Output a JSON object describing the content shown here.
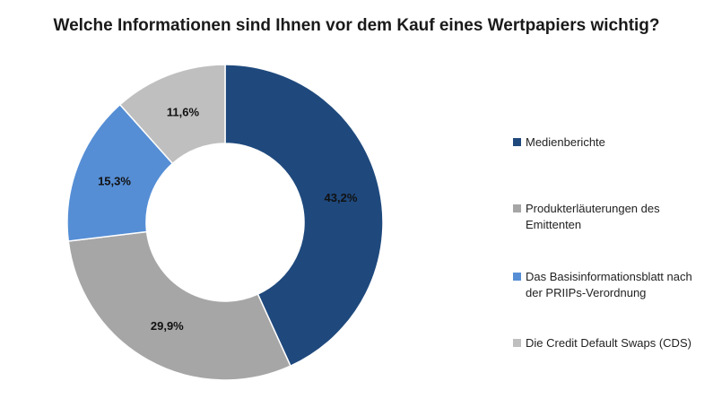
{
  "title": "Welche Informationen sind Ihnen vor dem Kauf eines Wertpapiers wichtig?",
  "chart_data": {
    "type": "pie",
    "donut": true,
    "title": "Welche Informationen sind Ihnen vor dem Kauf eines Wertpapiers wichtig?",
    "legend_position": "right",
    "categories": [
      "Medienberichte",
      "Produkterläuterungen des Emittenten",
      "Das Basisinformationsblatt nach der PRIIPs-Verordnung",
      "Die Credit Default Swaps (CDS)"
    ],
    "values": [
      43.2,
      29.9,
      15.3,
      11.6
    ],
    "labels": [
      "43,2%",
      "29,9%",
      "15,3%",
      "11,6%"
    ],
    "colors": [
      "#1f497d",
      "#a6a6a6",
      "#558ed5",
      "#bfbfbf"
    ]
  }
}
